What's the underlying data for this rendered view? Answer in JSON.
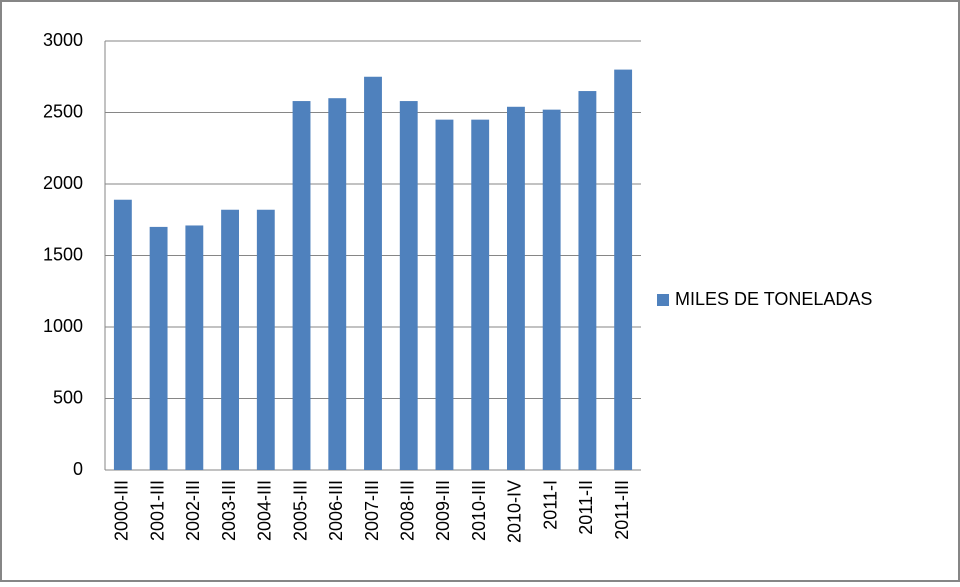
{
  "chart_data": {
    "type": "bar",
    "categories": [
      "2000-III",
      "2001-III",
      "2002-III",
      "2003-III",
      "2004-III",
      "2005-III",
      "2006-III",
      "2007-III",
      "2008-III",
      "2009-III",
      "2010-III",
      "2010-IV",
      "2011-I",
      "2011-II",
      "2011-III"
    ],
    "series": [
      {
        "name": "MILES DE TONELADAS",
        "color": "#4f81bd",
        "values": [
          1890,
          1700,
          1710,
          1820,
          1820,
          2580,
          2600,
          2750,
          2580,
          2450,
          2450,
          2540,
          2520,
          2650,
          2800
        ]
      }
    ],
    "ylim": [
      0,
      3000
    ],
    "yticks": [
      0,
      500,
      1000,
      1500,
      2000,
      2500,
      3000
    ],
    "grid": true,
    "legend": "right"
  }
}
